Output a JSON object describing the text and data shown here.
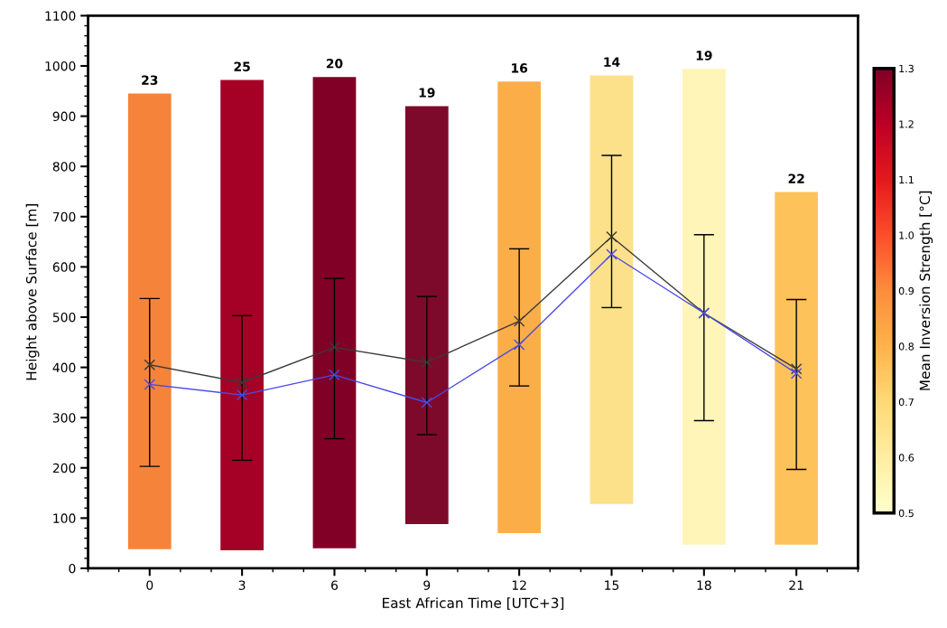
{
  "chart_data": {
    "type": "bar",
    "xlabel": "East African Time [UTC+3]",
    "ylabel": "Height above Surface [m]",
    "clabel": "Mean Inversion Strength [°C]",
    "x": [
      0,
      3,
      6,
      9,
      12,
      15,
      18,
      21
    ],
    "xlim": [
      -2,
      23
    ],
    "xticks": [
      0,
      3,
      6,
      9,
      12,
      15,
      18,
      21
    ],
    "ylim": [
      0,
      1100
    ],
    "yticks": [
      0,
      100,
      200,
      300,
      400,
      500,
      600,
      700,
      800,
      900,
      1000,
      1100
    ],
    "clim": [
      0.5,
      1.3
    ],
    "cticks": [
      0.5,
      0.6,
      0.7,
      0.8,
      0.9,
      {
        "value": 1.0,
        "label": "1.0"
      },
      1.1,
      1.2,
      1.3
    ],
    "grid": false,
    "legend": false,
    "annotations": [
      {
        "text": "23",
        "x": 0,
        "y": 945
      },
      {
        "text": "25",
        "x": 3,
        "y": 972
      },
      {
        "text": "20",
        "x": 6,
        "y": 978
      },
      {
        "text": "19",
        "x": 9,
        "y": 920
      },
      {
        "text": "16",
        "x": 12,
        "y": 969
      },
      {
        "text": "14",
        "x": 15,
        "y": 981
      },
      {
        "text": "19",
        "x": 18,
        "y": 994
      },
      {
        "text": "22",
        "x": 21,
        "y": 749
      }
    ],
    "series": [
      {
        "base": [
          38,
          36,
          40,
          88,
          70,
          128,
          47,
          47
        ],
        "values": [
          907,
          936,
          938,
          832,
          899,
          853,
          947,
          702
        ],
        "colors": [
          "#f5843a",
          "#a50026",
          "#800026",
          "#7d0a2b",
          "#fbae48",
          "#fde08a",
          "#fff5b8",
          "#fdc25a"
        ]
      },
      {
        "type": "line",
        "color": "#3a3a3a",
        "marker": "cross",
        "values": [
          405,
          370,
          440,
          410,
          492,
          660,
          508,
          397
        ],
        "errors": [
          [
            203,
            537
          ],
          [
            215,
            503
          ],
          [
            258,
            577
          ],
          [
            266,
            541
          ],
          [
            363,
            636
          ],
          [
            519,
            822
          ],
          [
            294,
            664
          ],
          [
            197,
            535
          ]
        ]
      },
      {
        "type": "line",
        "color": "#4a4ae8",
        "marker": "cross",
        "values": [
          366,
          345,
          385,
          330,
          445,
          625,
          508,
          388
        ]
      }
    ]
  }
}
